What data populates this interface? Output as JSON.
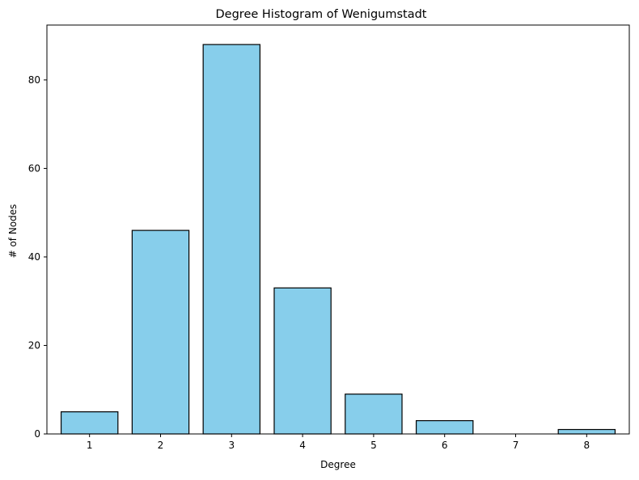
{
  "chart_data": {
    "type": "bar",
    "title": "Degree Histogram of Wenigumstadt",
    "xlabel": "Degree",
    "ylabel": "# of Nodes",
    "categories": [
      "1",
      "2",
      "3",
      "4",
      "5",
      "6",
      "7",
      "8"
    ],
    "values": [
      5,
      46,
      88,
      33,
      9,
      3,
      0,
      1
    ],
    "x": [
      1,
      2,
      3,
      4,
      5,
      6,
      7,
      8
    ],
    "xlim": [
      0.4,
      8.6
    ],
    "ylim": [
      0,
      92.4
    ],
    "yticks": [
      0,
      20,
      40,
      60,
      80
    ],
    "grid": false,
    "bar_color": "#87ceeb",
    "bar_edge_color": "#000000"
  }
}
